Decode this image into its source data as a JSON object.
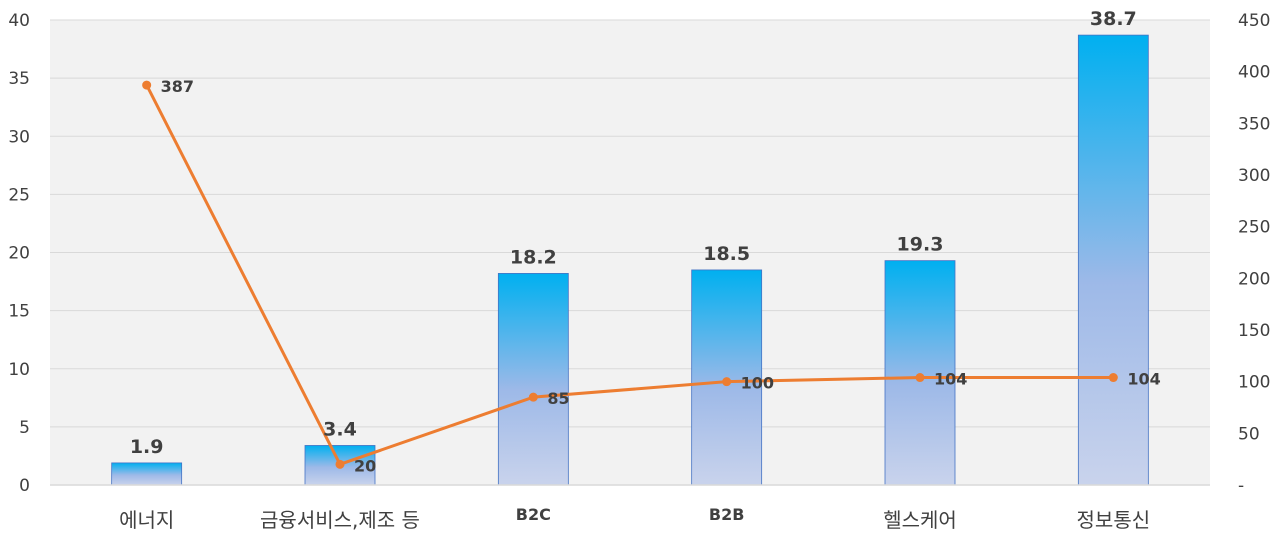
{
  "chart_data": {
    "type": "bar",
    "categories": [
      "에너지",
      "금융서비스,제조 등",
      "B2C",
      "B2B",
      "헬스케어",
      "정보통신"
    ],
    "bar_values": [
      1.9,
      3.4,
      18.2,
      18.5,
      19.3,
      38.7
    ],
    "bar_labels": [
      "1.9",
      "3.4",
      "18.2",
      "18.5",
      "19.3",
      "38.7"
    ],
    "line_values": [
      387,
      20,
      85,
      100,
      104,
      104
    ],
    "line_labels": [
      "387",
      "20",
      "85",
      "100",
      "104",
      "104"
    ],
    "y_left": {
      "range": [
        0,
        40
      ],
      "ticks": [
        "0",
        "5",
        "10",
        "15",
        "20",
        "25",
        "30",
        "35",
        "40"
      ]
    },
    "y_right": {
      "range": [
        0,
        450
      ],
      "ticks": [
        "-",
        "50",
        "100",
        "150",
        "200",
        "250",
        "300",
        "350",
        "400",
        "450"
      ]
    },
    "grid": true,
    "colors": {
      "bar_top": "#00B0F0",
      "bar_bottom": "#C9D3EC",
      "bar_outline": "#4472C4",
      "line": "#ED7D31",
      "plot_bg": "#F2F2F2",
      "gridline": "#D9D9D9",
      "text": "#404040"
    }
  }
}
